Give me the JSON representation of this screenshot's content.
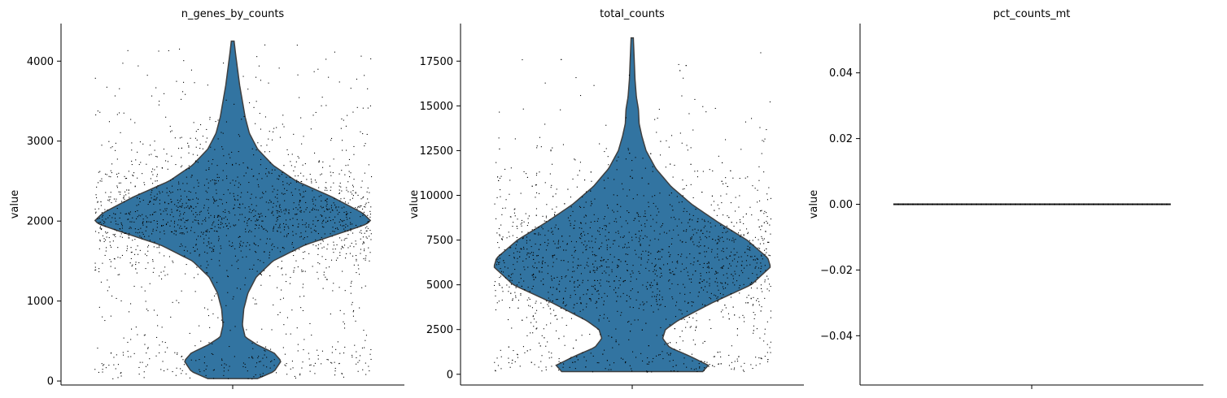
{
  "chart_data": [
    {
      "type": "violin",
      "title": "n_genes_by_counts",
      "xlabel": "",
      "ylabel": "value",
      "ylim": [
        -50,
        4470
      ],
      "yticks": [
        0,
        1000,
        2000,
        3000,
        4000
      ],
      "ytick_labels": [
        "0",
        "1000",
        "2000",
        "3000",
        "4000"
      ],
      "grid": false,
      "violin_color": "#3274a1",
      "point_color": "#000000",
      "data_min": 30,
      "data_max": 4250,
      "density_profile": [
        [
          30,
          0.18
        ],
        [
          120,
          0.3
        ],
        [
          250,
          0.35
        ],
        [
          350,
          0.3
        ],
        [
          450,
          0.18
        ],
        [
          550,
          0.09
        ],
        [
          700,
          0.07
        ],
        [
          900,
          0.08
        ],
        [
          1100,
          0.11
        ],
        [
          1300,
          0.17
        ],
        [
          1500,
          0.29
        ],
        [
          1700,
          0.52
        ],
        [
          1850,
          0.78
        ],
        [
          1950,
          0.95
        ],
        [
          2000,
          1.0
        ],
        [
          2100,
          0.94
        ],
        [
          2300,
          0.72
        ],
        [
          2500,
          0.46
        ],
        [
          2700,
          0.29
        ],
        [
          2900,
          0.18
        ],
        [
          3100,
          0.12
        ],
        [
          3300,
          0.09
        ],
        [
          3500,
          0.07
        ],
        [
          3700,
          0.05
        ],
        [
          3900,
          0.035
        ],
        [
          4100,
          0.02
        ],
        [
          4250,
          0.01
        ]
      ]
    },
    {
      "type": "violin",
      "title": "total_counts",
      "xlabel": "",
      "ylabel": "value",
      "ylim": [
        -600,
        19600
      ],
      "yticks": [
        0,
        2500,
        5000,
        7500,
        10000,
        12500,
        15000,
        17500
      ],
      "ytick_labels": [
        "0",
        "2500",
        "5000",
        "7500",
        "10000",
        "12500",
        "15000",
        "17500"
      ],
      "grid": false,
      "violin_color": "#3274a1",
      "point_color": "#000000",
      "data_min": 150,
      "data_max": 18800,
      "density_profile": [
        [
          150,
          0.51
        ],
        [
          500,
          0.55
        ],
        [
          1000,
          0.42
        ],
        [
          1500,
          0.27
        ],
        [
          2000,
          0.22
        ],
        [
          2500,
          0.24
        ],
        [
          3000,
          0.33
        ],
        [
          4000,
          0.58
        ],
        [
          5000,
          0.86
        ],
        [
          6000,
          1.0
        ],
        [
          6500,
          0.98
        ],
        [
          7500,
          0.83
        ],
        [
          8500,
          0.62
        ],
        [
          9500,
          0.43
        ],
        [
          10500,
          0.28
        ],
        [
          11500,
          0.17
        ],
        [
          12500,
          0.1
        ],
        [
          13300,
          0.07
        ],
        [
          14000,
          0.05
        ],
        [
          14800,
          0.045
        ],
        [
          15500,
          0.03
        ],
        [
          16500,
          0.02
        ],
        [
          17500,
          0.015
        ],
        [
          18800,
          0.008
        ]
      ]
    },
    {
      "type": "violin",
      "title": "pct_counts_mt",
      "xlabel": "",
      "ylabel": "value",
      "ylim": [
        -0.055,
        0.055
      ],
      "yticks": [
        -0.04,
        -0.02,
        0.0,
        0.02,
        0.04
      ],
      "ytick_labels": [
        "−0.04",
        "−0.02",
        "0.00",
        "0.02",
        "0.04"
      ],
      "grid": false,
      "violin_color": "#3274a1",
      "point_color": "#000000",
      "constant_value": 0.0
    }
  ]
}
